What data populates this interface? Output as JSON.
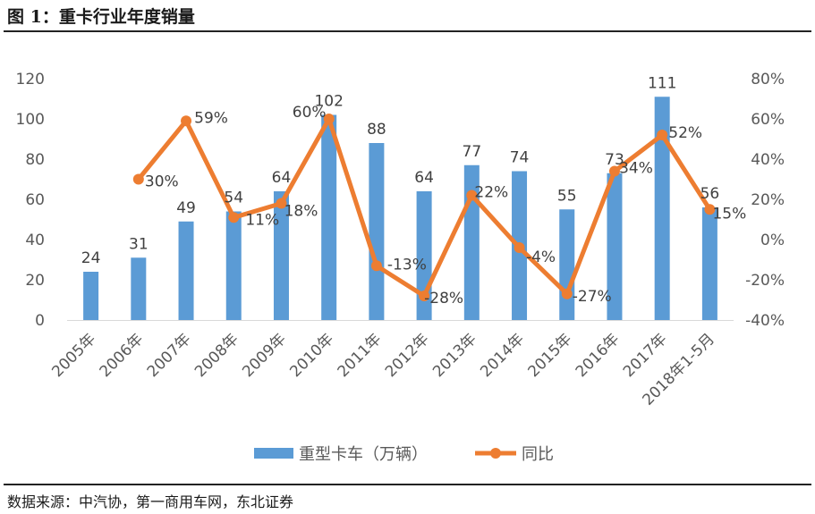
{
  "figure": {
    "title": "图 1：重卡行业年度销量",
    "source": "数据来源：中汽协，第一商用车网，东北证券"
  },
  "colors": {
    "bar": "#5b9bd5",
    "line": "#ed7d31",
    "axis": "#d9d9d9",
    "text": "#595959"
  },
  "chart_data": {
    "type": "bar+line",
    "title": "",
    "categories": [
      "2005年",
      "2006年",
      "2007年",
      "2008年",
      "2009年",
      "2010年",
      "2011年",
      "2012年",
      "2013年",
      "2014年",
      "2015年",
      "2016年",
      "2017年",
      "2018年1-5月"
    ],
    "series": [
      {
        "name": "重型卡车（万辆）",
        "type": "bar",
        "axis": "left",
        "values": [
          24,
          31,
          49,
          54,
          64,
          102,
          88,
          64,
          77,
          74,
          55,
          73,
          111,
          56
        ],
        "labels": [
          "24",
          "31",
          "49",
          "54",
          "64",
          "102",
          "88",
          "64",
          "77",
          "74",
          "55",
          "73",
          "111",
          "56"
        ]
      },
      {
        "name": "同比",
        "type": "line",
        "axis": "right",
        "values": [
          null,
          30,
          59,
          11,
          18,
          60,
          -13,
          -28,
          22,
          -4,
          -27,
          34,
          52,
          15
        ],
        "labels": [
          "",
          "30%",
          "59%",
          "11%",
          "18%",
          "60%",
          "-13%",
          "-28%",
          "22%",
          "-4%",
          "-27%",
          "34%",
          "52%",
          "15%"
        ]
      }
    ],
    "y_left": {
      "min": 0,
      "max": 120,
      "ticks": [
        "0",
        "20",
        "40",
        "60",
        "80",
        "100",
        "120"
      ]
    },
    "y_right": {
      "min": -40,
      "max": 80,
      "ticks": [
        "-40%",
        "-20%",
        "0%",
        "20%",
        "40%",
        "60%",
        "80%"
      ]
    },
    "legend": [
      "重型卡车（万辆）",
      "同比"
    ],
    "legend_position": "bottom"
  }
}
